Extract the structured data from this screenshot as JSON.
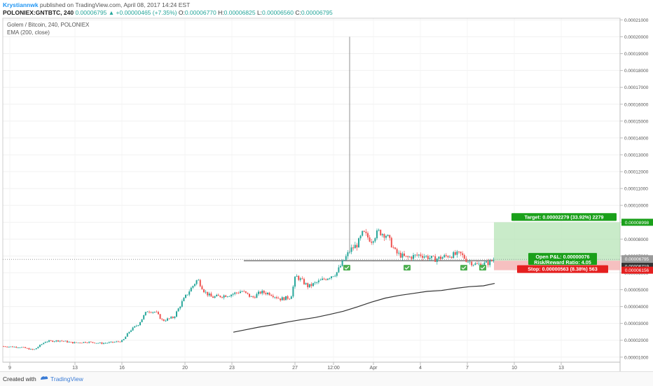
{
  "header": {
    "author": "Krystiannwk",
    "published_text": "published on TradingView.com, April 08, 2017 14:24 EST",
    "symbol": "POLONIEX:GNTBTC, 240",
    "last": "0.00006795",
    "change": "▲ +0.00000465 (+7.35%)",
    "o_label": "O:",
    "o_val": "0.00006770",
    "h_label": "H:",
    "h_val": "0.00006825",
    "l_label": "L:",
    "l_val": "0.00006560",
    "c_label": "C:",
    "c_val": "0.00006795"
  },
  "legend": {
    "title": "Golem / Bitcoin, 240, POLONIEX",
    "indicator": "EMA (200, close)"
  },
  "footer": {
    "created_with": "Created with",
    "brand": "TradingView"
  },
  "chart_data": {
    "type": "candlestick",
    "ylim": [
      7e-06,
      0.000211
    ],
    "yticks": [
      "0.00021000",
      "0.00020000",
      "0.00019000",
      "0.00018000",
      "0.00017000",
      "0.00016000",
      "0.00015000",
      "0.00014000",
      "0.00013000",
      "0.00012000",
      "0.00011000",
      "0.00010000",
      "0.00009000",
      "0.00008000",
      "0.00007000",
      "0.00006000",
      "0.00005000",
      "0.00004000",
      "0.00003000",
      "0.00002000",
      "0.00001000"
    ],
    "xticks": [
      "9",
      "13",
      "16",
      "20",
      "23",
      "27",
      "12:00",
      "Apr",
      "4",
      "7",
      "10",
      "13"
    ],
    "grid": true,
    "series": [
      {
        "name": "GNTBTC",
        "type": "candlestick",
        "close_path": [
          [
            0,
            1.65e-05
          ],
          [
            15,
            1.62e-05
          ],
          [
            30,
            1.59e-05
          ],
          [
            48,
            1.42e-05
          ],
          [
            65,
            1.93e-05
          ],
          [
            85,
            1.98e-05
          ],
          [
            105,
            1.85e-05
          ],
          [
            125,
            1.9e-05
          ],
          [
            145,
            1.82e-05
          ],
          [
            162,
            1.88e-05
          ],
          [
            175,
            1.96e-05
          ],
          [
            185,
            2.55e-05
          ],
          [
            198,
            2.98e-05
          ],
          [
            210,
            3.75e-05
          ],
          [
            222,
            3.68e-05
          ],
          [
            232,
            3.16e-05
          ],
          [
            248,
            3.36e-05
          ],
          [
            260,
            4.28e-05
          ],
          [
            270,
            4.92e-05
          ],
          [
            282,
            5.62e-05
          ],
          [
            292,
            4.88e-05
          ],
          [
            302,
            4.55e-05
          ],
          [
            315,
            4.62e-05
          ],
          [
            330,
            4.72e-05
          ],
          [
            345,
            4.92e-05
          ],
          [
            360,
            4.52e-05
          ],
          [
            372,
            4.85e-05
          ],
          [
            385,
            4.78e-05
          ],
          [
            400,
            4.45e-05
          ],
          [
            415,
            4.55e-05
          ],
          [
            422,
            5.82e-05
          ],
          [
            430,
            5.56e-05
          ],
          [
            440,
            5.18e-05
          ],
          [
            455,
            5.48e-05
          ],
          [
            468,
            5.73e-05
          ],
          [
            480,
            5.98e-05
          ],
          [
            490,
            6.68e-05
          ],
          [
            500,
            7.36e-05
          ],
          [
            510,
            7.68e-05
          ],
          [
            518,
            8.38e-05
          ],
          [
            530,
            7.92e-05
          ],
          [
            540,
            8.45e-05
          ],
          [
            552,
            8.22e-05
          ],
          [
            565,
            7.18e-05
          ],
          [
            580,
            6.88e-05
          ],
          [
            600,
            7.08e-05
          ],
          [
            620,
            6.8e-05
          ],
          [
            640,
            7.02e-05
          ],
          [
            657,
            7.12e-05
          ],
          [
            667,
            6.72e-05
          ],
          [
            680,
            6.48e-05
          ],
          [
            695,
            6.55e-05
          ],
          [
            705,
            6.795e-05
          ]
        ],
        "spike": {
          "high": 0.0002
        }
      },
      {
        "name": "EMA (200, close)",
        "type": "line",
        "values": [
          [
            333,
            2.48e-05
          ],
          [
            350,
            2.62e-05
          ],
          [
            370,
            2.78e-05
          ],
          [
            390,
            2.92e-05
          ],
          [
            410,
            3.08e-05
          ],
          [
            430,
            3.22e-05
          ],
          [
            450,
            3.35e-05
          ],
          [
            470,
            3.53e-05
          ],
          [
            490,
            3.72e-05
          ],
          [
            510,
            3.98e-05
          ],
          [
            530,
            4.26e-05
          ],
          [
            550,
            4.5e-05
          ],
          [
            570,
            4.66e-05
          ],
          [
            590,
            4.78e-05
          ],
          [
            610,
            4.9e-05
          ],
          [
            630,
            4.95e-05
          ],
          [
            650,
            5.08e-05
          ],
          [
            670,
            5.18e-05
          ],
          [
            690,
            5.23e-05
          ],
          [
            706,
            5.37e-05
          ]
        ]
      }
    ],
    "support_level": 6.719e-05,
    "last_price": 6.795e-05,
    "position": {
      "entry": 6.719e-05,
      "target": 8.998e-05,
      "stop": 6.156e-05,
      "target_label": "Target: 0.00002279 (33.92%) 2279",
      "pnl_label": "Open P&L: 0.00000076",
      "rr_label": "Risk/Reward Ratio: 4.05",
      "stop_label": "Stop: 0.00000563 (8.38%) 563"
    },
    "price_tags": {
      "target": "0.00008998",
      "last": "0.00006795",
      "countdown": "35:23",
      "entry": "0.00006719",
      "stop": "0.00006156"
    },
    "colors": {
      "up": "#26a69a",
      "down": "#ef5350",
      "ema": "#333333",
      "target_zone": "#b7e4b7",
      "stop_zone": "#f5b5b5",
      "target_tag": "#1aa01a",
      "stop_tag": "#e51f1f",
      "last_tag": "#9a9a9a",
      "entry_tag": "#333333",
      "check": "#4caf50"
    }
  }
}
